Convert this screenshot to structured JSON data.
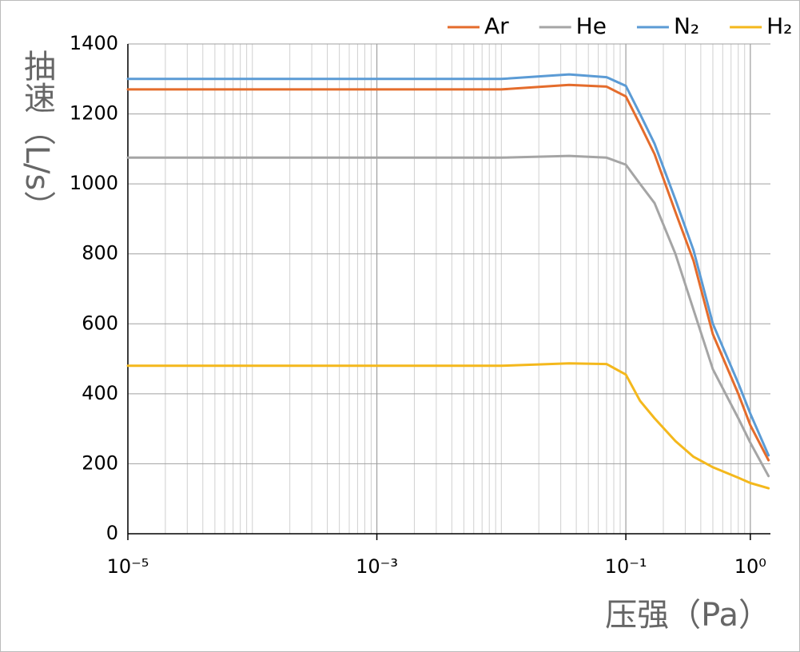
{
  "chart_data": {
    "type": "line",
    "x_label": "压强（Pa）",
    "y_label": "抽速（L/s）",
    "x": [
      1e-05,
      0.01,
      0.035,
      0.07,
      0.1,
      0.13,
      0.17,
      0.25,
      0.35,
      0.5,
      0.8,
      1,
      1.4
    ],
    "series": [
      {
        "name": "Ar",
        "color": "#e46c2c",
        "values": [
          1270,
          1270,
          1283,
          1278,
          1250,
          1170,
          1085,
          920,
          780,
          570,
          400,
          310,
          210
        ]
      },
      {
        "name": "He",
        "color": "#a5a5a5",
        "values": [
          1075,
          1075,
          1080,
          1075,
          1055,
          1000,
          945,
          800,
          640,
          470,
          330,
          260,
          165
        ]
      },
      {
        "name": "N₂",
        "color": "#5b9bd5",
        "values": [
          1300,
          1300,
          1313,
          1305,
          1280,
          1200,
          1115,
          955,
          810,
          600,
          430,
          343,
          224
        ]
      },
      {
        "name": "H₂",
        "color": "#f4b81c",
        "values": [
          480,
          480,
          487,
          485,
          455,
          380,
          330,
          265,
          220,
          190,
          160,
          145,
          130
        ]
      }
    ],
    "xscale": "log",
    "xlim": [
      1e-05,
      1.45
    ],
    "xticks": [
      {
        "value": 1e-05,
        "label": "10⁻⁵"
      },
      {
        "value": 0.001,
        "label": "10⁻³"
      },
      {
        "value": 0.1,
        "label": "10⁻¹"
      },
      {
        "value": 1,
        "label": "10⁰"
      }
    ],
    "ylim": [
      0,
      1400
    ],
    "yticks": [
      0,
      200,
      400,
      600,
      800,
      1000,
      1200,
      1400
    ],
    "grid": true,
    "minor_grid": true,
    "legend": "top-right"
  }
}
